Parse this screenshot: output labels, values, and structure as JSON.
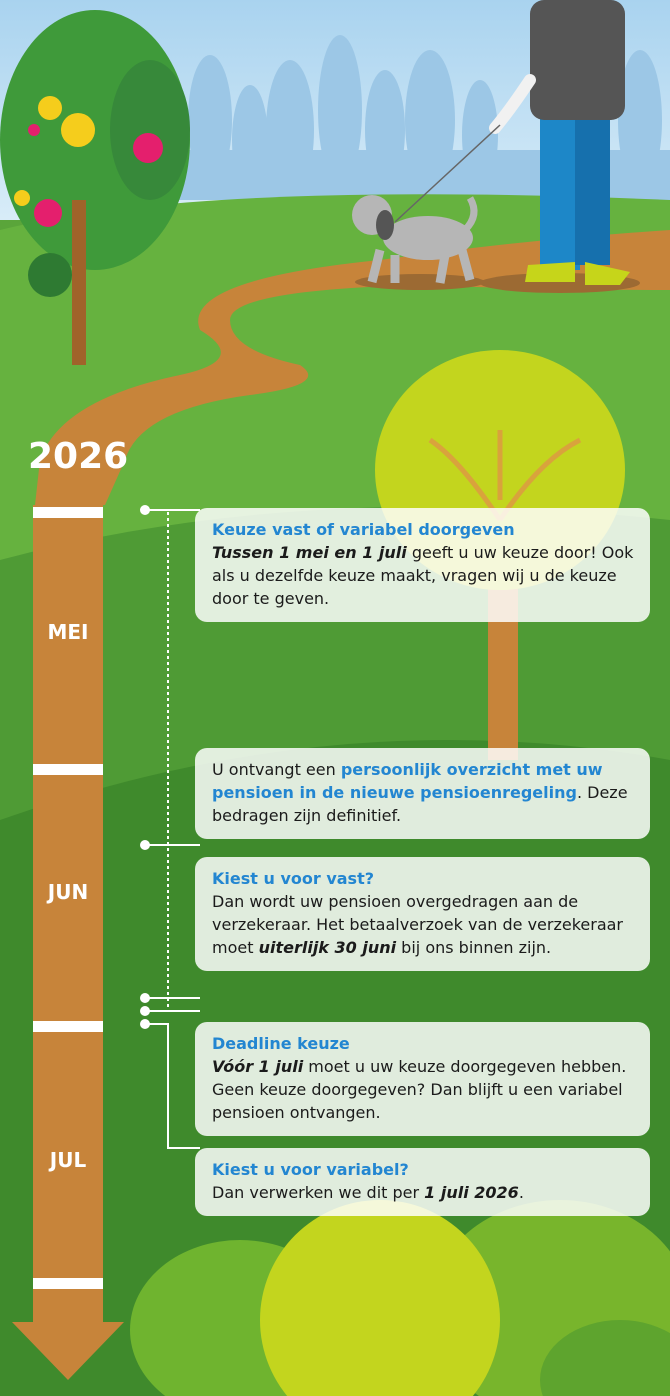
{
  "year": "2026",
  "months": [
    "MEI",
    "JUN",
    "JUL"
  ],
  "events": [
    {
      "title": "Keuze vast of variabel doorgeven",
      "body": [
        {
          "text": "Tussen 1 mei en 1 juli",
          "style": "bold-italic"
        },
        {
          "text": " geeft u uw keuze door! Ook als u dezelfde keuze maakt, vragen wij u de keuze door te geven."
        }
      ]
    },
    {
      "body": [
        {
          "text": "U ontvangt een "
        },
        {
          "text": "persoonlijk overzicht met uw pensioen in de nieuwe pensioenregeling",
          "style": "bold-blue"
        },
        {
          "text": ". Deze bedragen zijn definitief."
        }
      ]
    },
    {
      "title": "Kiest u voor vast?",
      "body": [
        {
          "text": "Dan wordt uw pensioen overgedragen aan de verzekeraar. Het betaalverzoek van de verzekeraar moet "
        },
        {
          "text": "uiterlijk 30 juni",
          "style": "bold-italic"
        },
        {
          "text": " bij ons binnen zijn."
        }
      ]
    },
    {
      "title": "Deadline keuze",
      "body": [
        {
          "text": "Vóór 1 juli",
          "style": "bold-italic"
        },
        {
          "text": " moet u uw keuze doorgegeven hebben. Geen keuze doorgegeven? Dan blijft u een variabel pensioen ontvangen."
        }
      ]
    },
    {
      "title": "Kiest u voor variabel?",
      "body": [
        {
          "text": "Dan verwerken we dit per "
        },
        {
          "text": "1 juli 2026",
          "style": "bold-italic"
        },
        {
          "text": "."
        }
      ]
    }
  ]
}
